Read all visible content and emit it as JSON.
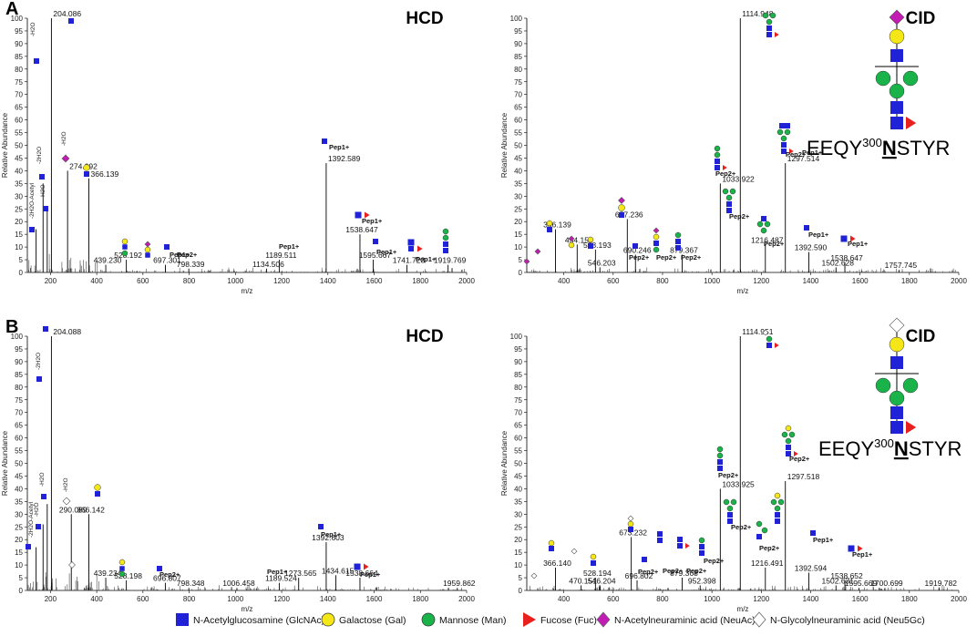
{
  "panels": [
    {
      "letter": "A",
      "side": "HCD",
      "mode": "HCD",
      "ylabel": "Relative Abundance",
      "xlabel": "m/z",
      "ylim": [
        0,
        100
      ],
      "xlim": [
        100,
        2000
      ],
      "xticks": [
        "200",
        "400",
        "600",
        "800",
        "1000",
        "1200",
        "1400",
        "1600",
        "1800",
        "2000"
      ],
      "yticks": [
        "0",
        "5",
        "10",
        "15",
        "20",
        "25",
        "30",
        "35",
        "40",
        "45",
        "50",
        "55",
        "60",
        "65",
        "70",
        "75",
        "80",
        "85",
        "90",
        "95",
        "100"
      ]
    },
    {
      "letter": "",
      "side": "CID",
      "mode": "CID",
      "ylabel": "Relative Abundance",
      "xlabel": "m/z",
      "ylim": [
        0,
        100
      ],
      "xlim": [
        250,
        2000
      ],
      "xticks": [
        "400",
        "600",
        "800",
        "1000",
        "1200",
        "1400",
        "1600",
        "1800",
        "2000"
      ],
      "yticks": [
        "0",
        "5",
        "10",
        "15",
        "20",
        "25",
        "30",
        "35",
        "40",
        "45",
        "50",
        "55",
        "60",
        "65",
        "70",
        "75",
        "80",
        "85",
        "90",
        "95",
        "100"
      ]
    },
    {
      "letter": "B",
      "side": "HCD",
      "mode": "HCD",
      "ylabel": "Relative Abundance",
      "xlabel": "m/z",
      "ylim": [
        0,
        100
      ],
      "xlim": [
        100,
        2000
      ],
      "xticks": [
        "200",
        "400",
        "600",
        "800",
        "1000",
        "1200",
        "1400",
        "1600",
        "1800",
        "2000"
      ],
      "yticks": [
        "0",
        "5",
        "10",
        "15",
        "20",
        "25",
        "30",
        "35",
        "40",
        "45",
        "50",
        "55",
        "60",
        "65",
        "70",
        "75",
        "80",
        "85",
        "90",
        "95",
        "100"
      ]
    },
    {
      "letter": "",
      "side": "CID",
      "mode": "CID",
      "ylabel": "Relative Abundance",
      "xlabel": "m/z",
      "ylim": [
        0,
        100
      ],
      "xlim": [
        250,
        2000
      ],
      "xticks": [
        "400",
        "600",
        "800",
        "1000",
        "1200",
        "1400",
        "1600",
        "1800",
        "2000"
      ],
      "yticks": [
        "0",
        "5",
        "10",
        "15",
        "20",
        "25",
        "30",
        "35",
        "40",
        "45",
        "50",
        "55",
        "60",
        "65",
        "70",
        "75",
        "80",
        "85",
        "90",
        "95",
        "100"
      ]
    }
  ],
  "chart_data": [
    {
      "type": "bar",
      "title": "A HCD",
      "xlabel": "m/z",
      "ylabel": "Relative Abundance",
      "xlim": [
        100,
        2000
      ],
      "ylim": [
        0,
        100
      ],
      "peaks": [
        {
          "mz": 138,
          "y": 17,
          "label": ""
        },
        {
          "mz": 168,
          "y": 35,
          "label": ""
        },
        {
          "mz": 186,
          "y": 24,
          "label": ""
        },
        {
          "mz": 204.086,
          "y": 100,
          "label": "204.086"
        },
        {
          "mz": 274.092,
          "y": 40,
          "label": "274.092"
        },
        {
          "mz": 366.139,
          "y": 37,
          "label": "366.139"
        },
        {
          "mz": 439.23,
          "y": 3,
          "label": "439.230"
        },
        {
          "mz": 528.192,
          "y": 5,
          "label": "528.192"
        },
        {
          "mz": 697.301,
          "y": 3,
          "label": "697.301"
        },
        {
          "mz": 798.339,
          "y": 1.5,
          "label": "798.339"
        },
        {
          "mz": 1134.506,
          "y": 1.5,
          "label": "1134.506"
        },
        {
          "mz": 1189.511,
          "y": 5,
          "label": "1189.511"
        },
        {
          "mz": 1392.589,
          "y": 43,
          "label": "1392.589"
        },
        {
          "mz": 1538.647,
          "y": 15,
          "label": "1538.647"
        },
        {
          "mz": 1595.667,
          "y": 5,
          "label": "1595.667"
        },
        {
          "mz": 1741.723,
          "y": 3,
          "label": "1741.723"
        },
        {
          "mz": 1919.769,
          "y": 3,
          "label": "1919.769"
        }
      ]
    },
    {
      "type": "bar",
      "title": "A CID",
      "xlabel": "m/z",
      "ylabel": "Relative Abundance",
      "xlim": [
        250,
        2000
      ],
      "ylim": [
        0,
        100
      ],
      "peaks": [
        {
          "mz": 366.139,
          "y": 17,
          "label": "366.139"
        },
        {
          "mz": 454.156,
          "y": 11,
          "label": "454.156"
        },
        {
          "mz": 528.193,
          "y": 9,
          "label": "528.193"
        },
        {
          "mz": 546.203,
          "y": 2,
          "label": "546.203"
        },
        {
          "mz": 657.236,
          "y": 21,
          "label": "657.236"
        },
        {
          "mz": 690.246,
          "y": 7,
          "label": "690.246"
        },
        {
          "mz": 879.367,
          "y": 7,
          "label": "879.367"
        },
        {
          "mz": 1033.922,
          "y": 35,
          "label": "1033.922"
        },
        {
          "mz": 1114.948,
          "y": 100,
          "label": "1114.948"
        },
        {
          "mz": 1216.487,
          "y": 11,
          "label": "1216.487"
        },
        {
          "mz": 1297.514,
          "y": 43,
          "label": "1297.514"
        },
        {
          "mz": 1392.59,
          "y": 8,
          "label": "1392.590"
        },
        {
          "mz": 1502.628,
          "y": 2,
          "label": "1502.628"
        },
        {
          "mz": 1538.647,
          "y": 4,
          "label": "1538.647"
        },
        {
          "mz": 1757.745,
          "y": 1,
          "label": "1757.745"
        }
      ]
    },
    {
      "type": "bar",
      "title": "B HCD",
      "xlabel": "m/z",
      "ylabel": "Relative Abundance",
      "xlim": [
        100,
        2000
      ],
      "ylim": [
        0,
        100
      ],
      "peaks": [
        {
          "mz": 138,
          "y": 17,
          "label": ""
        },
        {
          "mz": 168,
          "y": 26,
          "label": ""
        },
        {
          "mz": 186,
          "y": 34,
          "label": ""
        },
        {
          "mz": 204.088,
          "y": 100,
          "label": "204.088"
        },
        {
          "mz": 290.089,
          "y": 30,
          "label": "290.089"
        },
        {
          "mz": 366.142,
          "y": 30,
          "label": "366.142"
        },
        {
          "mz": 439.234,
          "y": 5,
          "label": "439.234"
        },
        {
          "mz": 528.198,
          "y": 4,
          "label": "528.198"
        },
        {
          "mz": 696.807,
          "y": 3,
          "label": "696.807"
        },
        {
          "mz": 798.348,
          "y": 1,
          "label": "798.348"
        },
        {
          "mz": 1006.458,
          "y": 1,
          "label": "1006.458"
        },
        {
          "mz": 1189.524,
          "y": 3,
          "label": "1189.524"
        },
        {
          "mz": 1273.565,
          "y": 5,
          "label": "1273.565"
        },
        {
          "mz": 1392.603,
          "y": 19,
          "label": "1392.603"
        },
        {
          "mz": 1434.615,
          "y": 6,
          "label": "1434.615"
        },
        {
          "mz": 1538.664,
          "y": 5,
          "label": "1538.664"
        },
        {
          "mz": 1959.862,
          "y": 1,
          "label": "1959.862"
        }
      ]
    },
    {
      "type": "bar",
      "title": "B CID",
      "xlabel": "m/z",
      "ylabel": "Relative Abundance",
      "xlim": [
        250,
        2000
      ],
      "ylim": [
        0,
        100
      ],
      "peaks": [
        {
          "mz": 366.14,
          "y": 9,
          "label": "366.140"
        },
        {
          "mz": 470.151,
          "y": 2,
          "label": "470.151"
        },
        {
          "mz": 528.194,
          "y": 5,
          "label": "528.194"
        },
        {
          "mz": 546.204,
          "y": 2,
          "label": "546.204"
        },
        {
          "mz": 673.232,
          "y": 21,
          "label": "673.232"
        },
        {
          "mz": 696.802,
          "y": 4,
          "label": "696.802"
        },
        {
          "mz": 879.368,
          "y": 5,
          "label": "879.368"
        },
        {
          "mz": 952.398,
          "y": 2,
          "label": "952.398"
        },
        {
          "mz": 1033.925,
          "y": 40,
          "label": "1033.925"
        },
        {
          "mz": 1114.951,
          "y": 100,
          "label": "1114.951"
        },
        {
          "mz": 1216.491,
          "y": 9,
          "label": "1216.491"
        },
        {
          "mz": 1297.518,
          "y": 43,
          "label": "1297.518"
        },
        {
          "mz": 1392.594,
          "y": 7,
          "label": "1392.594"
        },
        {
          "mz": 1502.631,
          "y": 2,
          "label": "1502.631"
        },
        {
          "mz": 1538.652,
          "y": 4,
          "label": "1538.652"
        },
        {
          "mz": 1595.669,
          "y": 1,
          "label": "1595.669"
        },
        {
          "mz": 1700.699,
          "y": 1,
          "label": "1700.699"
        },
        {
          "mz": 1919.782,
          "y": 1,
          "label": "1919.782"
        }
      ]
    }
  ],
  "ions": {
    "pep1": "Pep1+",
    "pep2": "Pep2+"
  },
  "fragments": [
    "-H2O",
    "-2H2O",
    "-CH3OH",
    "-2H2O-Acetyl"
  ],
  "sequence": {
    "pre": "EEQY",
    "sup": "300",
    "site": "N",
    "post": "STYR"
  },
  "colors": {
    "glcnac": "#1f22d6",
    "gal": "#f5e617",
    "man": "#19b34a",
    "fuc": "#e8201e",
    "neuac": "#c21cb5",
    "neugc": "#ffffff",
    "peak": "#000000"
  },
  "legend": [
    {
      "icon": "square-icon",
      "color": "#1f22d6",
      "label": "N-Acetylglucosamine (GlcNAc)"
    },
    {
      "icon": "circle-icon",
      "color": "#f5e617",
      "label": "Galactose (Gal)"
    },
    {
      "icon": "circle-icon",
      "color": "#19b34a",
      "label": "Mannose (Man)"
    },
    {
      "icon": "triangle-icon",
      "color": "#e8201e",
      "label": "Fucose (Fuc)"
    },
    {
      "icon": "diamond-icon",
      "color": "#c21cb5",
      "label": "N-Acetylneuraminic acid (NeuAc)"
    },
    {
      "icon": "diamond-icon",
      "color": "#ffffff",
      "label": "N-Glycolylneuraminic acid (Neu5Gc)"
    }
  ]
}
